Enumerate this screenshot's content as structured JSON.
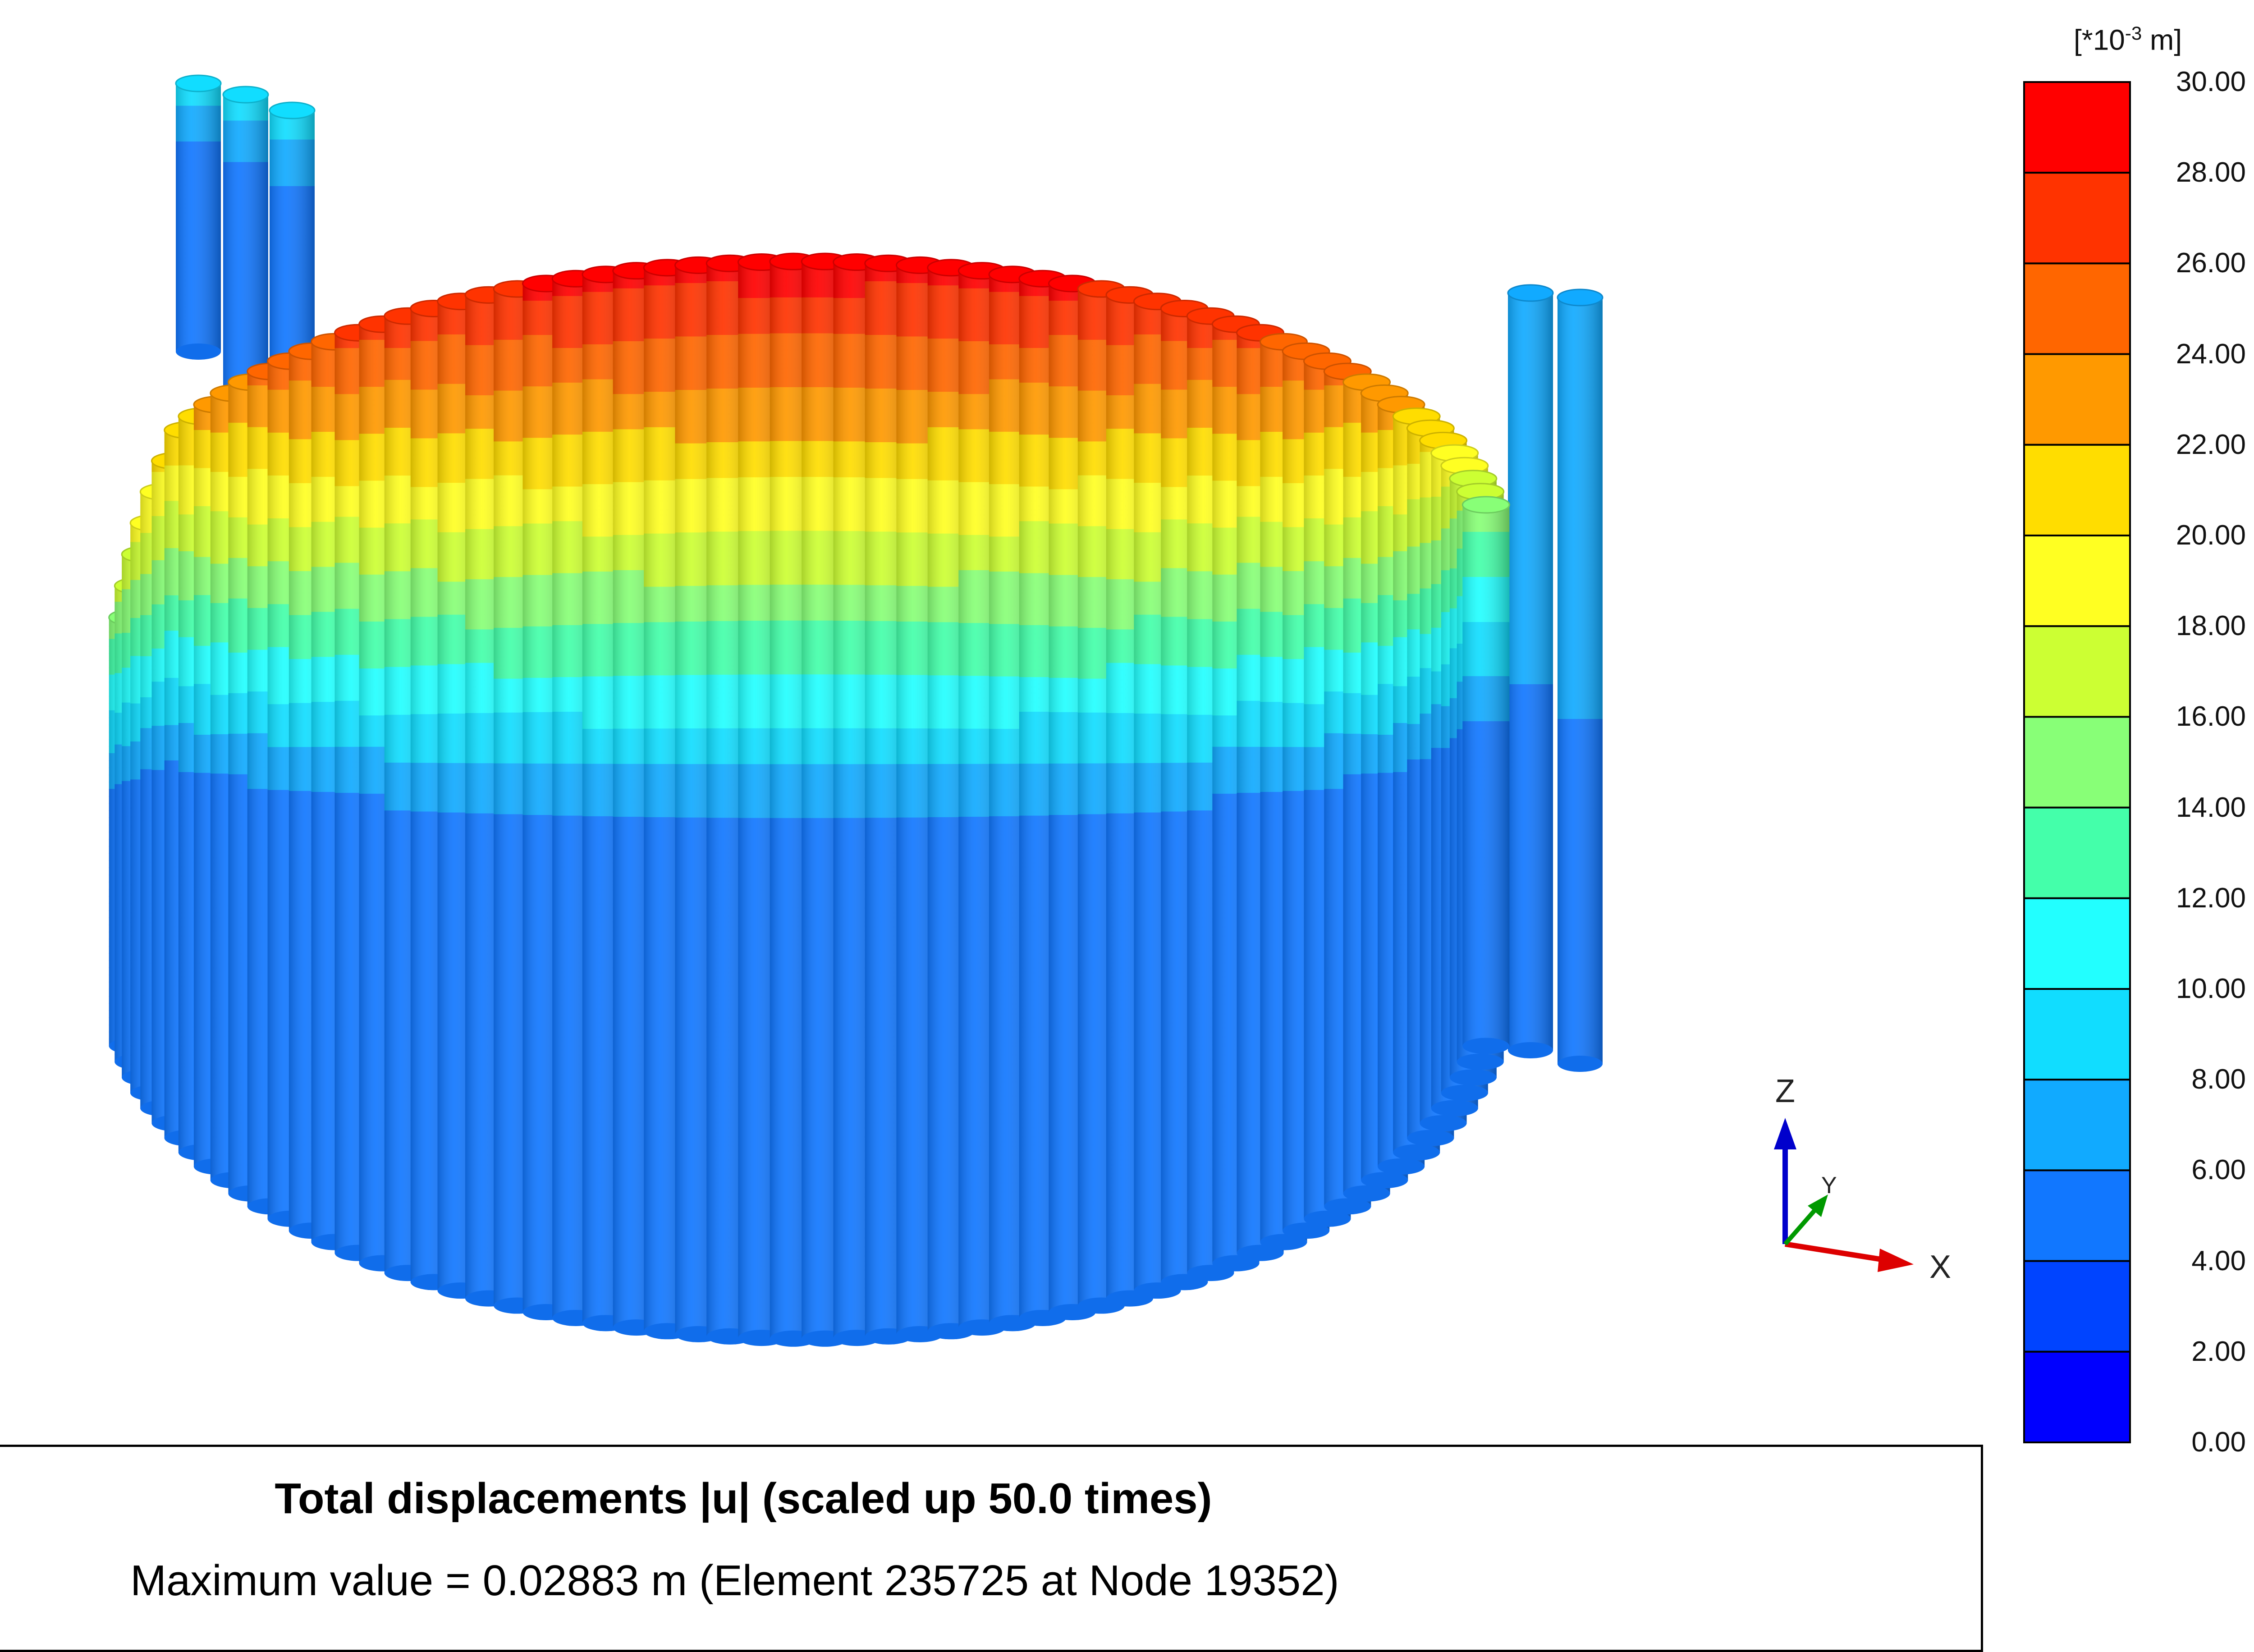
{
  "legend": {
    "unit_prefix": "[*10",
    "unit_exp": "-3",
    "unit_suffix": " m]",
    "ticks": [
      "30.00",
      "28.00",
      "26.00",
      "24.00",
      "22.00",
      "20.00",
      "18.00",
      "16.00",
      "14.00",
      "12.00",
      "10.00",
      "8.00",
      "6.00",
      "4.00",
      "2.00",
      "0.00"
    ],
    "band_colors": [
      "#ff0000",
      "#ff3300",
      "#ff6600",
      "#ff9900",
      "#ffdd00",
      "#ffff22",
      "#ccff33",
      "#88ff77",
      "#44ffaa",
      "#22ffff",
      "#11ddff",
      "#11aaff",
      "#1177ff",
      "#0044ff",
      "#0000ff"
    ]
  },
  "axes": {
    "z": "Z",
    "y": "Y",
    "x": "X"
  },
  "caption": {
    "title": "Total displacements |u| (scaled up 50.0 times)",
    "max_value": "Maximum value = 0.02883 m (Element 235725 at Node 19352)"
  }
}
